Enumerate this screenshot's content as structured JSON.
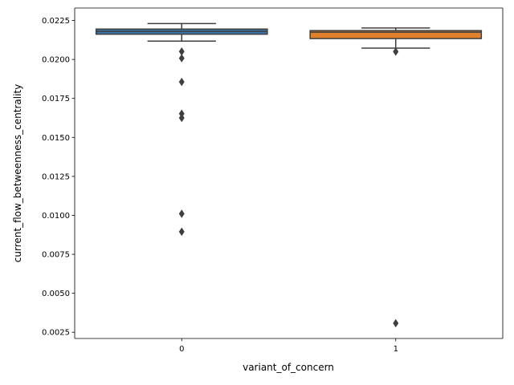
{
  "chart_data": {
    "type": "box",
    "title": "",
    "xlabel": "variant_of_concern",
    "ylabel": "current_flow_betweenness_centrality",
    "ylim": [
      0.0021,
      0.0233
    ],
    "yticks": [
      "0.0025",
      "0.0050",
      "0.0075",
      "0.0100",
      "0.0125",
      "0.0150",
      "0.0175",
      "0.0200",
      "0.0225"
    ],
    "categories": [
      "0",
      "1"
    ],
    "boxes": [
      {
        "category": "0",
        "color": "#3a75a8",
        "whisker_low": 0.02118,
        "q1": 0.02162,
        "median": 0.0218,
        "q3": 0.02195,
        "whisker_high": 0.0223,
        "outliers": [
          0.02051,
          0.02008,
          0.01856,
          0.01652,
          0.01625,
          0.0101,
          0.00895
        ]
      },
      {
        "category": "1",
        "color": "#e1812c",
        "whisker_low": 0.02073,
        "q1": 0.02134,
        "median": 0.02175,
        "q3": 0.02185,
        "whisker_high": 0.02202,
        "outliers": [
          0.0205,
          0.00308
        ]
      }
    ],
    "grid": false,
    "legend": "none"
  }
}
